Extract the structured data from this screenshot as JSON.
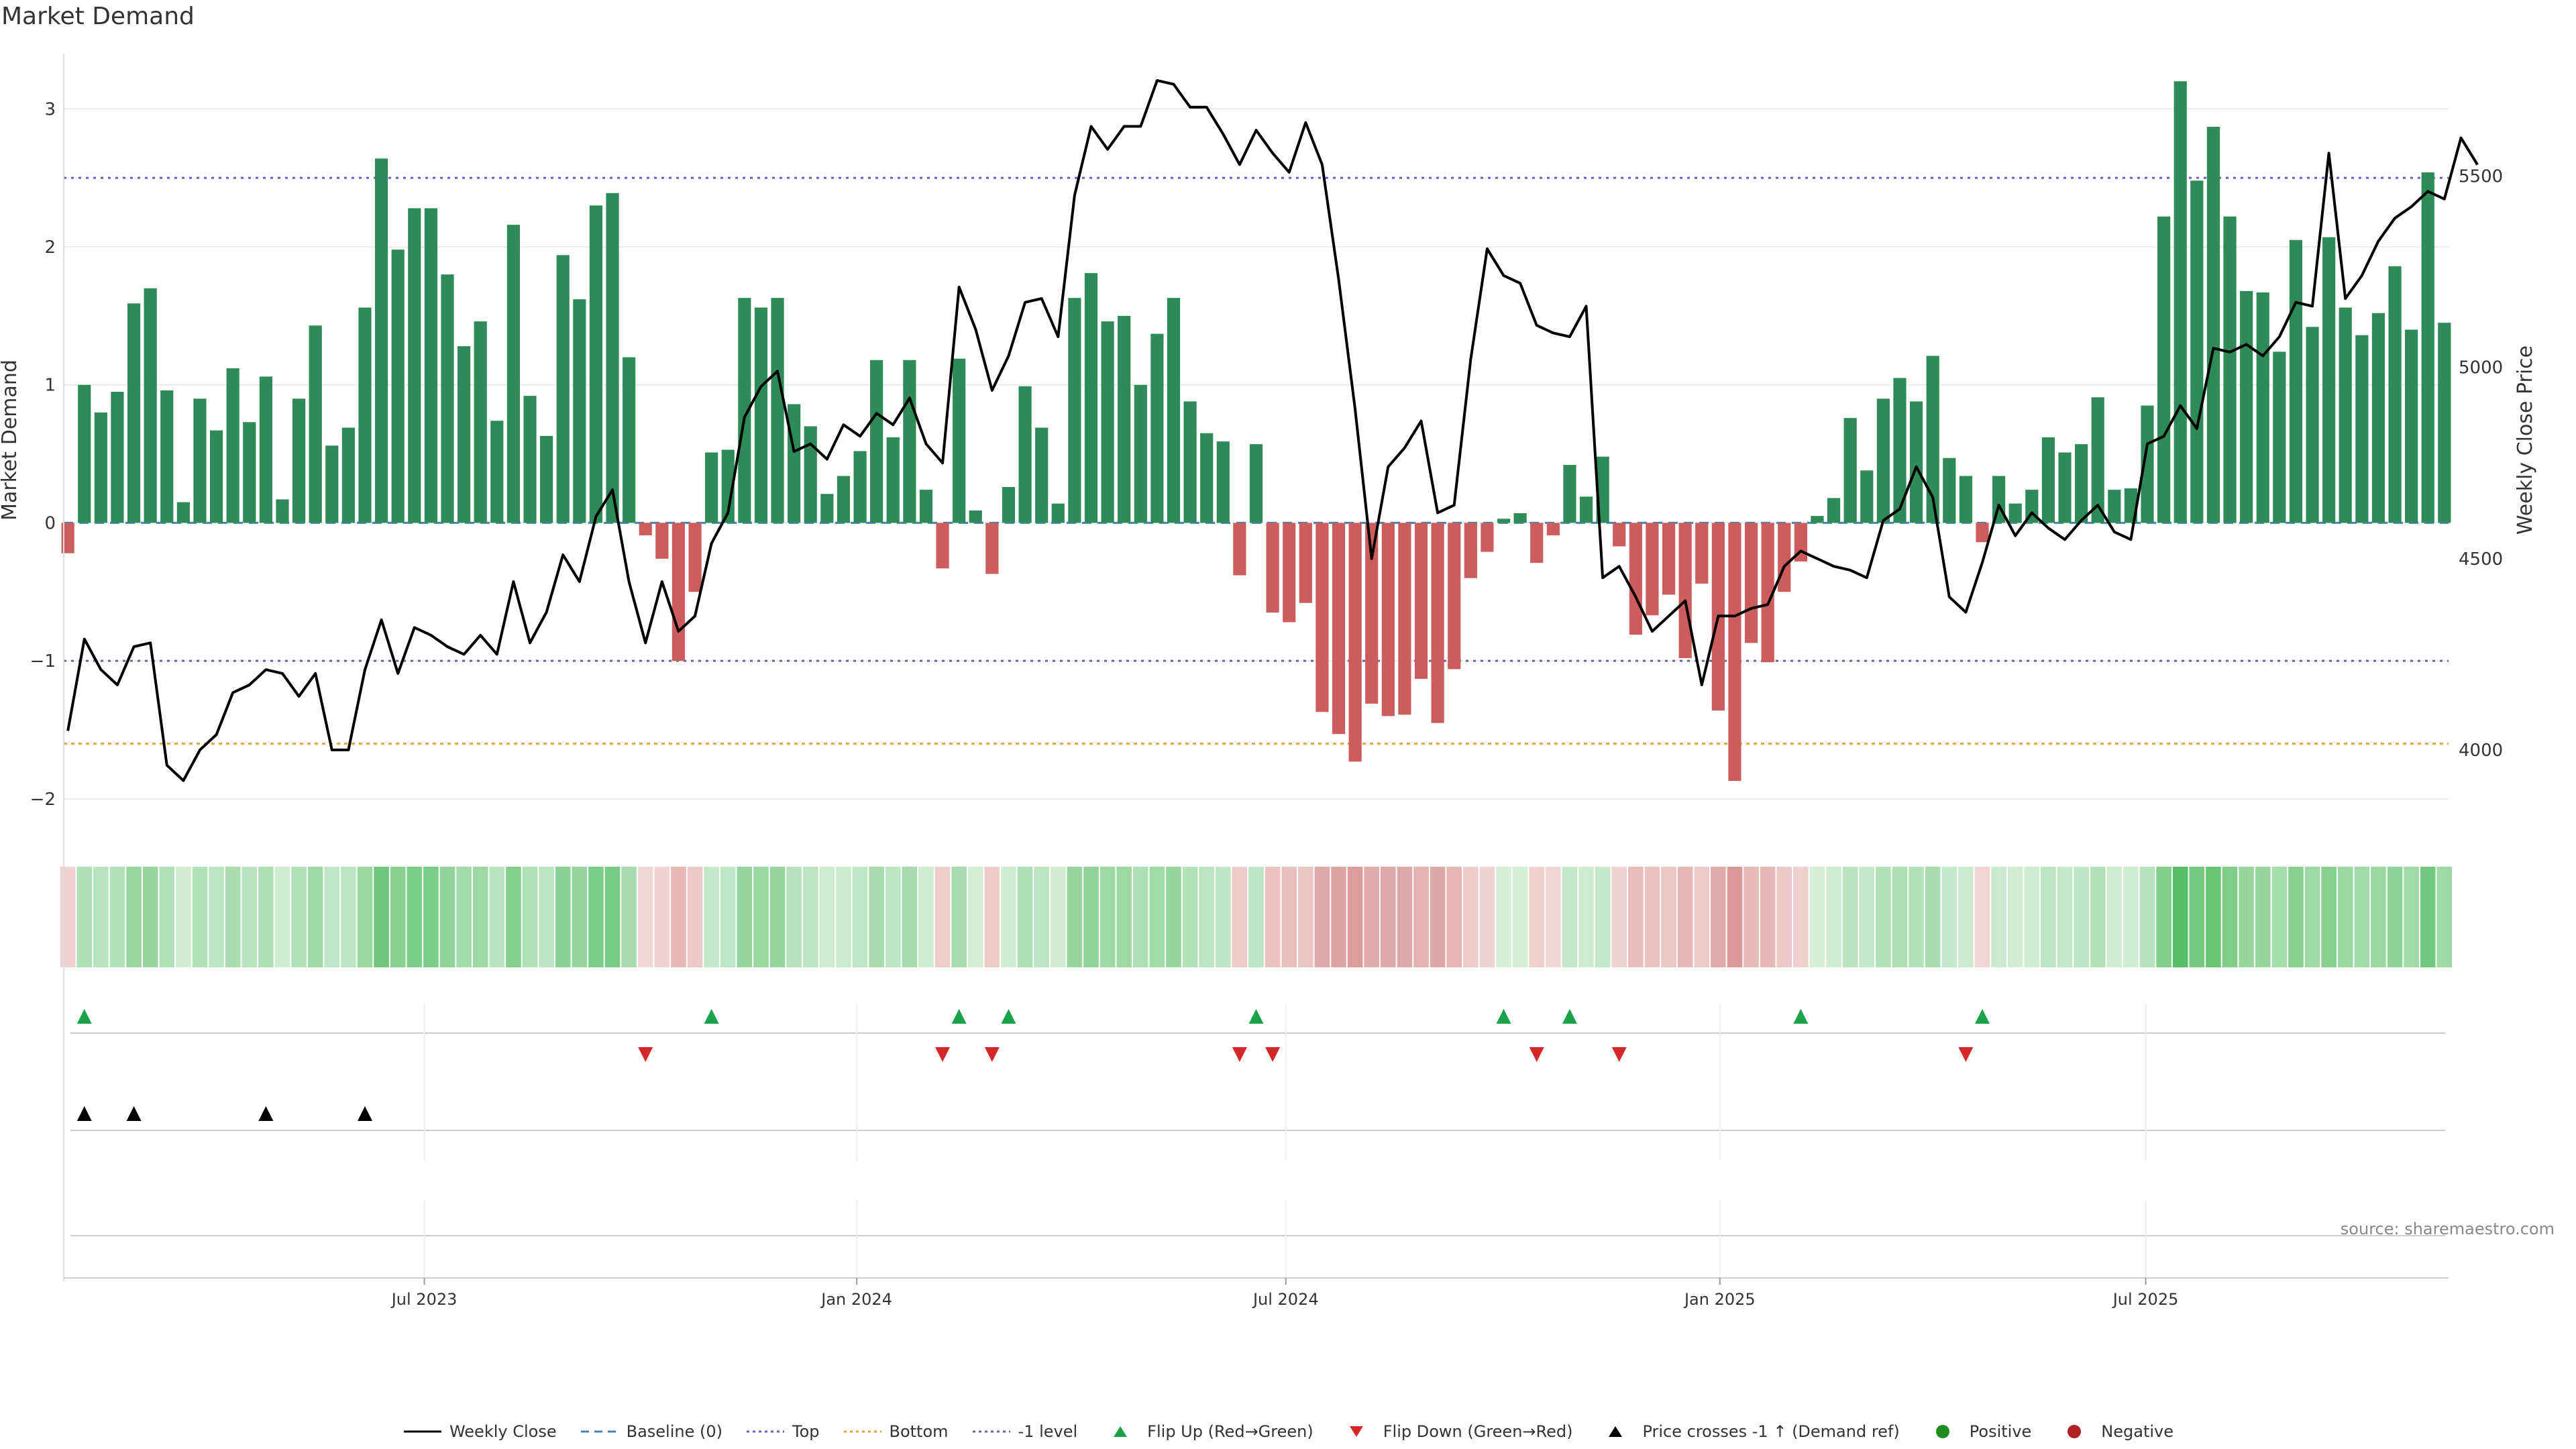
{
  "title": "Market Demand",
  "source": "source: sharemaestro.com",
  "colors": {
    "positive": "#2e8b57",
    "negative": "#cd5c5c",
    "price": "#000000",
    "baseline": "#4682b4",
    "top": "#6a5acd",
    "bottom": "#e6a23c",
    "minus1": "#666699",
    "flip_up": "#1aa34a",
    "flip_down": "#d62728",
    "cross_up": "#000000",
    "positive_dot": "#228b22",
    "negative_dot": "#b22222"
  },
  "chart_data": {
    "type": "bar",
    "left_axis": {
      "label": "Market Demand",
      "ticks": [
        "3",
        "2",
        "1",
        "0",
        "−1",
        "−2"
      ],
      "ylim": [
        -2.2,
        3.4
      ]
    },
    "right_axis": {
      "label": "Weekly Close Price",
      "ticks": [
        "5500",
        "5000",
        "4500",
        "4000"
      ],
      "ylim": [
        3800,
        5820
      ]
    },
    "x_axis": {
      "tick_labels": [
        "Jul 2023",
        "Jan 2024",
        "Jul 2024",
        "Jan 2025",
        "Jul 2025"
      ]
    },
    "reference_lines": {
      "baseline": 0,
      "top": 2.5,
      "bottom": -1.6,
      "minus1_level": -1.0
    },
    "series": [
      {
        "name": "Weekly Close",
        "type": "line",
        "values": [
          4050,
          4290,
          4210,
          4170,
          4270,
          4280,
          3960,
          3920,
          4000,
          4040,
          4150,
          4170,
          4210,
          4200,
          4140,
          4200,
          4000,
          4000,
          4210,
          4340,
          4200,
          4320,
          4300,
          4270,
          4250,
          4300,
          4250,
          4440,
          4280,
          4360,
          4510,
          4440,
          4610,
          4680,
          4440,
          4280,
          4440,
          4310,
          4350,
          4540,
          4620,
          4870,
          4950,
          4990,
          4780,
          4800,
          4760,
          4850,
          4820,
          4880,
          4850,
          4920,
          4800,
          4750,
          5210,
          5100,
          4940,
          5030,
          5170,
          5180,
          5080,
          5450,
          5630,
          5570,
          5630,
          5630,
          5750,
          5740,
          5680,
          5680,
          5610,
          5530,
          5620,
          5560,
          5510,
          5640,
          5530,
          5230,
          4890,
          4500,
          4740,
          4790,
          4860,
          4620,
          4640,
          5020,
          5310,
          5240,
          5220,
          5110,
          5090,
          5080,
          5160,
          4450,
          4480,
          4400,
          4310,
          4350,
          4390,
          4170,
          4350,
          4350,
          4370,
          4380,
          4480,
          4520,
          4500,
          4480,
          4470,
          4450,
          4600,
          4630,
          4740,
          4660,
          4400,
          4360,
          4490,
          4640,
          4560,
          4620,
          4580,
          4550,
          4600,
          4640,
          4570,
          4550,
          4800,
          4820,
          4900,
          4840,
          5050,
          5040,
          5060,
          5030,
          5080,
          5170,
          5160,
          5560,
          5180,
          5240,
          5330,
          5390,
          5420,
          5460,
          5440,
          5600,
          5530
        ]
      },
      {
        "name": "Market Demand",
        "type": "bar",
        "values": [
          -0.22,
          1.0,
          0.8,
          0.95,
          1.59,
          1.7,
          0.96,
          0.15,
          0.9,
          0.67,
          1.12,
          0.73,
          1.06,
          0.17,
          0.9,
          1.43,
          0.56,
          0.69,
          1.56,
          2.64,
          1.98,
          2.28,
          2.28,
          1.8,
          1.28,
          1.46,
          0.74,
          2.16,
          0.92,
          0.63,
          1.94,
          1.62,
          2.3,
          2.39,
          1.2,
          -0.09,
          -0.26,
          -1.0,
          -0.5,
          0.51,
          0.53,
          1.63,
          1.56,
          1.63,
          0.86,
          0.7,
          0.21,
          0.34,
          0.52,
          1.18,
          0.62,
          1.18,
          0.24,
          -0.33,
          1.19,
          0.09,
          -0.37,
          0.26,
          0.99,
          0.69,
          0.14,
          1.63,
          1.81,
          1.46,
          1.5,
          1.0,
          1.37,
          1.63,
          0.88,
          0.65,
          0.59,
          -0.38,
          0.57,
          -0.65,
          -0.72,
          -0.58,
          -1.37,
          -1.53,
          -1.73,
          -1.31,
          -1.4,
          -1.39,
          -1.13,
          -1.45,
          -1.06,
          -0.4,
          -0.21,
          0.03,
          0.07,
          -0.29,
          -0.09,
          0.42,
          0.19,
          0.48,
          -0.17,
          -0.81,
          -0.67,
          -0.52,
          -0.98,
          -0.44,
          -1.36,
          -1.87,
          -0.87,
          -1.01,
          -0.5,
          -0.28,
          0.05,
          0.18,
          0.76,
          0.38,
          0.9,
          1.05,
          0.88,
          1.21,
          0.47,
          0.34,
          -0.14,
          0.34,
          0.14,
          0.24,
          0.62,
          0.51,
          0.57,
          0.91,
          0.24,
          0.25,
          0.85,
          2.22,
          3.2,
          2.48,
          2.87,
          2.22,
          1.68,
          1.67,
          1.24,
          2.05,
          1.42,
          2.07,
          1.56,
          1.36,
          1.52,
          1.86,
          1.4,
          2.54,
          1.45
        ]
      }
    ],
    "flip_up_indices": [
      1,
      39,
      54,
      57,
      72,
      87,
      91,
      105,
      116
    ],
    "flip_down_indices": [
      35,
      53,
      56,
      71,
      73,
      89,
      94,
      115
    ],
    "price_cross_up_indices": [
      1,
      4,
      12,
      18
    ]
  },
  "legend": [
    {
      "key": "weekly-close",
      "label": "Weekly Close",
      "shape": "line",
      "color": "#000000"
    },
    {
      "key": "baseline",
      "label": "Baseline (0)",
      "shape": "dash",
      "color": "#4682b4"
    },
    {
      "key": "top",
      "label": "Top",
      "shape": "dot-line",
      "color": "#6a5acd"
    },
    {
      "key": "bottom",
      "label": "Bottom",
      "shape": "dot-line",
      "color": "#e6a23c"
    },
    {
      "key": "minus1",
      "label": "-1 level",
      "shape": "dot-line",
      "color": "#666699"
    },
    {
      "key": "flip-up",
      "label": "Flip Up (Red→Green)",
      "shape": "triangle-up",
      "color": "#1aa34a"
    },
    {
      "key": "flip-down",
      "label": "Flip Down (Green→Red)",
      "shape": "triangle-down",
      "color": "#d62728"
    },
    {
      "key": "price-cross",
      "label": "Price crosses -1 ↑ (Demand ref)",
      "shape": "triangle-up",
      "color": "#000000"
    },
    {
      "key": "positive",
      "label": "Positive",
      "shape": "circle",
      "color": "#228b22"
    },
    {
      "key": "negative",
      "label": "Negative",
      "shape": "circle",
      "color": "#b22222"
    }
  ]
}
